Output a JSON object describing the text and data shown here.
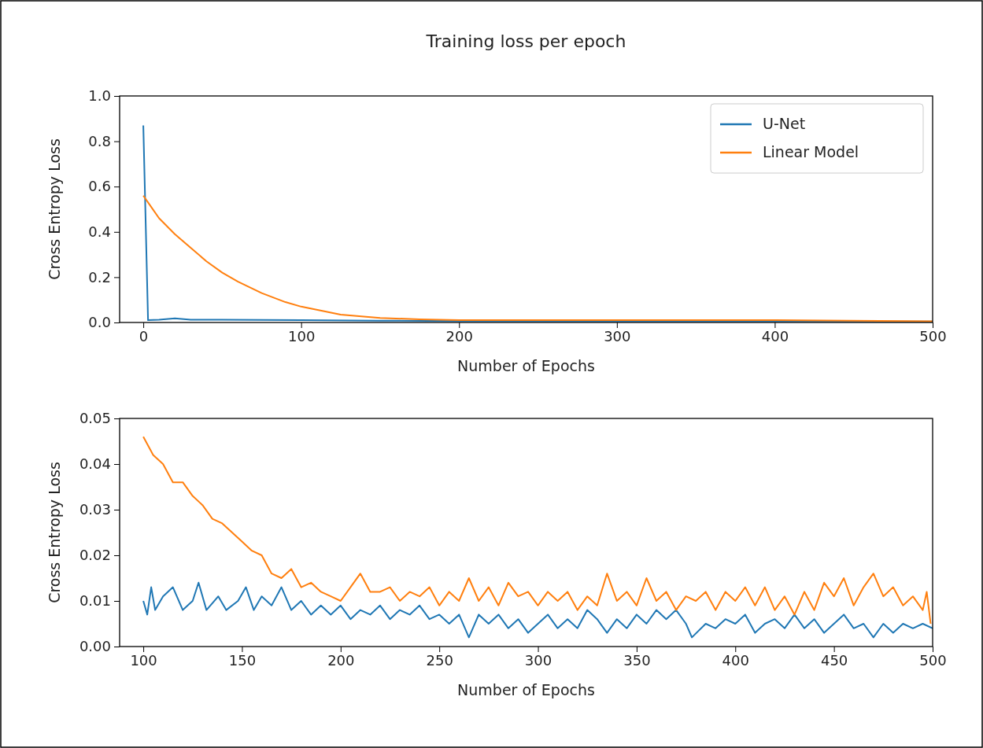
{
  "chart_data": [
    {
      "type": "line",
      "title": "Training loss per epoch",
      "xlabel": "Number of Epochs",
      "ylabel": "Cross Entropy Loss",
      "xlim": [
        -15,
        500
      ],
      "ylim": [
        0,
        1
      ],
      "xticks": [
        0,
        100,
        200,
        300,
        400,
        500
      ],
      "yticks": [
        {
          "value": 0,
          "label": "0.0"
        },
        {
          "value": 0.2,
          "label": "0.2"
        },
        {
          "value": 0.4,
          "label": "0.4"
        },
        {
          "value": 0.6,
          "label": "0.6"
        },
        {
          "value": 0.8,
          "label": "0.8"
        },
        {
          "value": 1,
          "label": "1.0"
        }
      ],
      "legend": "top right",
      "grid": false,
      "series": [
        {
          "name": "U-Net",
          "color": "#1f77b4",
          "x": [
            0,
            3,
            10,
            20,
            30,
            50,
            100,
            150,
            200,
            300,
            400,
            500
          ],
          "values": [
            0.87,
            0.01,
            0.012,
            0.018,
            0.012,
            0.012,
            0.01,
            0.008,
            0.006,
            0.005,
            0.005,
            0.004
          ]
        },
        {
          "name": "Linear Model",
          "color": "#ff7f0e",
          "x": [
            0,
            5,
            10,
            20,
            30,
            40,
            50,
            60,
            75,
            90,
            100,
            125,
            150,
            175,
            200,
            300,
            400,
            500
          ],
          "values": [
            0.56,
            0.51,
            0.46,
            0.39,
            0.33,
            0.27,
            0.22,
            0.18,
            0.13,
            0.09,
            0.07,
            0.035,
            0.02,
            0.014,
            0.01,
            0.01,
            0.01,
            0.005
          ]
        }
      ]
    },
    {
      "type": "line",
      "xlabel": "Number of Epochs",
      "ylabel": "Cross Entropy Loss",
      "xlim": [
        88,
        500
      ],
      "ylim": [
        0,
        0.05
      ],
      "xticks": [
        100,
        150,
        200,
        250,
        300,
        350,
        400,
        450,
        500
      ],
      "yticks": [
        {
          "value": 0,
          "label": "0.00"
        },
        {
          "value": 0.01,
          "label": "0.01"
        },
        {
          "value": 0.02,
          "label": "0.02"
        },
        {
          "value": 0.03,
          "label": "0.03"
        },
        {
          "value": 0.04,
          "label": "0.04"
        },
        {
          "value": 0.05,
          "label": "0.05"
        }
      ],
      "grid": false,
      "series": [
        {
          "color": "#1f77b4",
          "x": [
            100,
            102,
            104,
            106,
            110,
            115,
            120,
            125,
            128,
            132,
            138,
            142,
            148,
            152,
            156,
            160,
            165,
            170,
            175,
            180,
            185,
            190,
            195,
            200,
            205,
            210,
            215,
            220,
            225,
            230,
            235,
            240,
            245,
            250,
            255,
            260,
            265,
            270,
            275,
            280,
            285,
            290,
            295,
            300,
            305,
            310,
            315,
            320,
            325,
            330,
            335,
            340,
            345,
            350,
            355,
            360,
            365,
            370,
            375,
            378,
            385,
            390,
            395,
            400,
            405,
            410,
            415,
            420,
            425,
            430,
            435,
            440,
            445,
            450,
            455,
            460,
            465,
            470,
            475,
            480,
            485,
            490,
            495,
            500
          ],
          "values": [
            0.01,
            0.007,
            0.013,
            0.008,
            0.011,
            0.013,
            0.008,
            0.01,
            0.014,
            0.008,
            0.011,
            0.008,
            0.01,
            0.013,
            0.008,
            0.011,
            0.009,
            0.013,
            0.008,
            0.01,
            0.007,
            0.009,
            0.007,
            0.009,
            0.006,
            0.008,
            0.007,
            0.009,
            0.006,
            0.008,
            0.007,
            0.009,
            0.006,
            0.007,
            0.005,
            0.007,
            0.002,
            0.007,
            0.005,
            0.007,
            0.004,
            0.006,
            0.003,
            0.005,
            0.007,
            0.004,
            0.006,
            0.004,
            0.008,
            0.006,
            0.003,
            0.006,
            0.004,
            0.007,
            0.005,
            0.008,
            0.006,
            0.008,
            0.005,
            0.002,
            0.005,
            0.004,
            0.006,
            0.005,
            0.007,
            0.003,
            0.005,
            0.006,
            0.004,
            0.007,
            0.004,
            0.006,
            0.003,
            0.005,
            0.007,
            0.004,
            0.005,
            0.002,
            0.005,
            0.003,
            0.005,
            0.004,
            0.005,
            0.004
          ]
        },
        {
          "color": "#ff7f0e",
          "x": [
            100,
            105,
            110,
            115,
            120,
            125,
            130,
            135,
            140,
            145,
            150,
            155,
            160,
            165,
            170,
            175,
            180,
            185,
            190,
            195,
            200,
            205,
            210,
            215,
            220,
            225,
            230,
            235,
            240,
            245,
            250,
            255,
            260,
            265,
            270,
            275,
            280,
            285,
            290,
            295,
            300,
            305,
            310,
            315,
            320,
            325,
            330,
            335,
            340,
            345,
            350,
            355,
            360,
            365,
            370,
            375,
            380,
            385,
            390,
            395,
            400,
            405,
            410,
            415,
            420,
            425,
            430,
            435,
            440,
            445,
            450,
            455,
            460,
            465,
            470,
            475,
            480,
            485,
            490,
            495,
            497,
            499
          ],
          "values": [
            0.046,
            0.042,
            0.04,
            0.036,
            0.036,
            0.033,
            0.031,
            0.028,
            0.027,
            0.025,
            0.023,
            0.021,
            0.02,
            0.016,
            0.015,
            0.017,
            0.013,
            0.014,
            0.012,
            0.011,
            0.01,
            0.013,
            0.016,
            0.012,
            0.012,
            0.013,
            0.01,
            0.012,
            0.011,
            0.013,
            0.009,
            0.012,
            0.01,
            0.015,
            0.01,
            0.013,
            0.009,
            0.014,
            0.011,
            0.012,
            0.009,
            0.012,
            0.01,
            0.012,
            0.008,
            0.011,
            0.009,
            0.016,
            0.01,
            0.012,
            0.009,
            0.015,
            0.01,
            0.012,
            0.008,
            0.011,
            0.01,
            0.012,
            0.008,
            0.012,
            0.01,
            0.013,
            0.009,
            0.013,
            0.008,
            0.011,
            0.007,
            0.012,
            0.008,
            0.014,
            0.011,
            0.015,
            0.009,
            0.013,
            0.016,
            0.011,
            0.013,
            0.009,
            0.011,
            0.008,
            0.012,
            0.005
          ]
        }
      ]
    }
  ]
}
